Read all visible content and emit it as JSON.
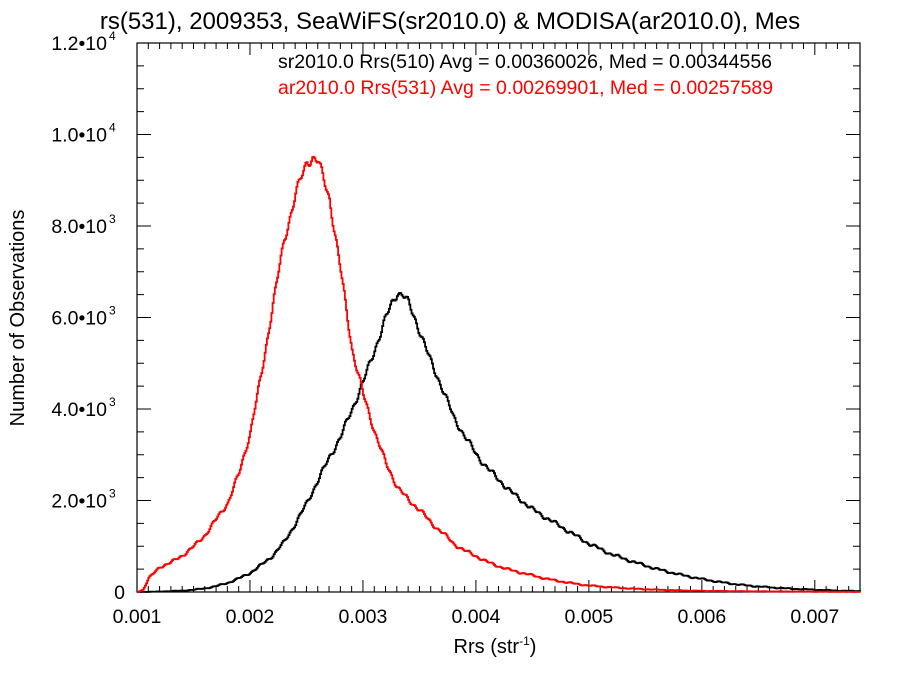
{
  "chart_data": {
    "type": "line",
    "title": "rs(531), 2009353, SeaWiFS(sr2010.0) & MODISA(ar2010.0), Mes",
    "xlabel": "Rrs (str",
    "xlabel_sup": "-1",
    "xlabel_close": ")",
    "ylabel": "Number of Observations",
    "xlim": [
      0.001,
      0.0074
    ],
    "ylim": [
      0,
      12000
    ],
    "grid": false,
    "x_ticks": [
      {
        "value": 0.001,
        "label": "0.001"
      },
      {
        "value": 0.002,
        "label": "0.002"
      },
      {
        "value": 0.003,
        "label": "0.003"
      },
      {
        "value": 0.004,
        "label": "0.004"
      },
      {
        "value": 0.005,
        "label": "0.005"
      },
      {
        "value": 0.006,
        "label": "0.006"
      },
      {
        "value": 0.007,
        "label": "0.007"
      }
    ],
    "y_ticks": [
      {
        "value": 0,
        "mant": "0",
        "exp": ""
      },
      {
        "value": 2000,
        "mant": "2.0•10",
        "exp": "3"
      },
      {
        "value": 4000,
        "mant": "4.0•10",
        "exp": "3"
      },
      {
        "value": 6000,
        "mant": "6.0•10",
        "exp": "3"
      },
      {
        "value": 8000,
        "mant": "8.0•10",
        "exp": "3"
      },
      {
        "value": 10000,
        "mant": "1.0•10",
        "exp": "4"
      },
      {
        "value": 12000,
        "mant": "1.2•10",
        "exp": "4"
      }
    ],
    "legend": [
      {
        "text": "sr2010.0 Rrs(510) Avg = 0.00360026, Med = 0.00344556",
        "color": "#000000"
      },
      {
        "text": "ar2010.0 Rrs(531) Avg = 0.00269901, Med = 0.00257589",
        "color": "#ff0000"
      }
    ],
    "series": [
      {
        "color": "#000000",
        "x": [
          0.001,
          0.0011,
          0.0012,
          0.0013,
          0.0014,
          0.0015,
          0.0016,
          0.0017,
          0.0018,
          0.0019,
          0.002,
          0.0021,
          0.0022,
          0.0023,
          0.0024,
          0.0025,
          0.0026,
          0.0027,
          0.0028,
          0.0029,
          0.003,
          0.0031,
          0.0032,
          0.00325,
          0.0033,
          0.00335,
          0.0034,
          0.0035,
          0.0036,
          0.0037,
          0.0038,
          0.0039,
          0.004,
          0.0041,
          0.0042,
          0.0043,
          0.0044,
          0.0045,
          0.0046,
          0.0047,
          0.0048,
          0.0049,
          0.005,
          0.0052,
          0.0054,
          0.0056,
          0.0058,
          0.006,
          0.0062,
          0.0064,
          0.0066,
          0.0068,
          0.007,
          0.0072,
          0.0074
        ],
        "y": [
          0,
          5,
          10,
          20,
          30,
          50,
          80,
          130,
          200,
          300,
          420,
          600,
          800,
          1100,
          1500,
          1950,
          2450,
          2950,
          3400,
          4000,
          4600,
          5300,
          6000,
          6300,
          6550,
          6500,
          6300,
          5700,
          5000,
          4450,
          3800,
          3400,
          3000,
          2700,
          2450,
          2200,
          2000,
          1800,
          1650,
          1500,
          1350,
          1200,
          1050,
          820,
          650,
          500,
          380,
          280,
          200,
          140,
          100,
          70,
          50,
          30,
          20
        ]
      },
      {
        "color": "#ff0000",
        "x": [
          0.001,
          0.00105,
          0.0011,
          0.0012,
          0.0013,
          0.0014,
          0.0015,
          0.0016,
          0.0017,
          0.0018,
          0.0019,
          0.002,
          0.0021,
          0.0022,
          0.0023,
          0.0024,
          0.0025,
          0.00255,
          0.0026,
          0.0027,
          0.0028,
          0.0029,
          0.003,
          0.0031,
          0.0032,
          0.0033,
          0.0034,
          0.0035,
          0.0036,
          0.0037,
          0.0038,
          0.0039,
          0.004,
          0.0041,
          0.0042,
          0.0043,
          0.0044,
          0.0045,
          0.0046,
          0.0047,
          0.0048,
          0.0049,
          0.005,
          0.0052,
          0.0054,
          0.0056,
          0.0058,
          0.006,
          0.0064,
          0.0068,
          0.0072,
          0.0074
        ],
        "y": [
          0,
          50,
          300,
          550,
          650,
          800,
          1000,
          1250,
          1600,
          1950,
          2600,
          3500,
          4800,
          6300,
          7700,
          8700,
          9400,
          9500,
          9400,
          8600,
          7000,
          5300,
          4300,
          3500,
          2800,
          2300,
          2000,
          1800,
          1500,
          1300,
          1050,
          900,
          780,
          650,
          560,
          480,
          420,
          360,
          300,
          250,
          210,
          170,
          140,
          100,
          70,
          50,
          35,
          25,
          15,
          10,
          5,
          3
        ]
      }
    ]
  }
}
